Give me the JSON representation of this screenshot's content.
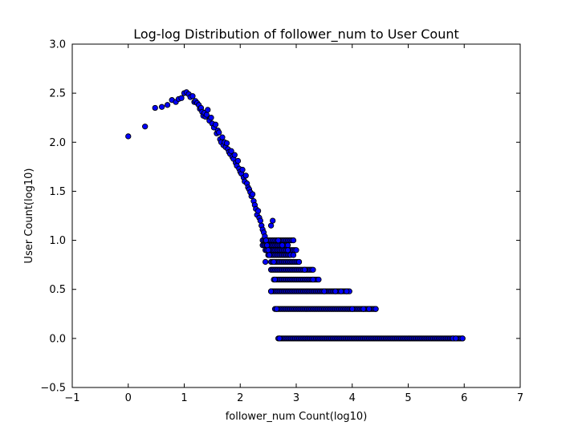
{
  "chart_data": {
    "type": "scatter",
    "title": "Log-log Distribution of follower_num to User Count",
    "xlabel": "follower_num Count(log10)",
    "ylabel": "User Count(log10)",
    "xlim": [
      -1,
      7
    ],
    "ylim": [
      -0.5,
      3.0
    ],
    "xticks": [
      -1,
      0,
      1,
      2,
      3,
      4,
      5,
      6,
      7
    ],
    "yticks": [
      -0.5,
      0.0,
      0.5,
      1.0,
      1.5,
      2.0,
      2.5,
      3.0
    ],
    "xtick_labels": [
      "−1",
      "0",
      "1",
      "2",
      "3",
      "4",
      "5",
      "6",
      "7"
    ],
    "ytick_labels": [
      "−0.5",
      "0.0",
      "0.5",
      "1.0",
      "1.5",
      "2.0",
      "2.5",
      "3.0"
    ],
    "grid": false,
    "legend": "none",
    "marker_color": "#0000ff",
    "marker_edge": "#000000",
    "points": [
      {
        "x": 0.0,
        "y": 2.06
      },
      {
        "x": 0.3,
        "y": 2.16
      },
      {
        "x": 0.48,
        "y": 2.35
      },
      {
        "x": 0.6,
        "y": 2.36
      },
      {
        "x": 0.7,
        "y": 2.38
      },
      {
        "x": 0.78,
        "y": 2.43
      },
      {
        "x": 0.85,
        "y": 2.41
      },
      {
        "x": 0.9,
        "y": 2.44
      },
      {
        "x": 0.95,
        "y": 2.45
      },
      {
        "x": 1.0,
        "y": 2.5
      },
      {
        "x": 1.04,
        "y": 2.51
      },
      {
        "x": 1.08,
        "y": 2.49
      },
      {
        "x": 1.11,
        "y": 2.46
      },
      {
        "x": 1.15,
        "y": 2.47
      },
      {
        "x": 1.18,
        "y": 2.41
      },
      {
        "x": 1.2,
        "y": 2.42
      },
      {
        "x": 1.23,
        "y": 2.4
      },
      {
        "x": 1.26,
        "y": 2.38
      },
      {
        "x": 1.28,
        "y": 2.34
      },
      {
        "x": 1.3,
        "y": 2.35
      },
      {
        "x": 1.32,
        "y": 2.31
      },
      {
        "x": 1.34,
        "y": 2.27
      },
      {
        "x": 1.36,
        "y": 2.3
      },
      {
        "x": 1.38,
        "y": 2.26
      },
      {
        "x": 1.4,
        "y": 2.28
      },
      {
        "x": 1.42,
        "y": 2.33
      },
      {
        "x": 1.45,
        "y": 2.22
      },
      {
        "x": 1.48,
        "y": 2.25
      },
      {
        "x": 1.5,
        "y": 2.19
      },
      {
        "x": 1.53,
        "y": 2.15
      },
      {
        "x": 1.56,
        "y": 2.18
      },
      {
        "x": 1.58,
        "y": 2.09
      },
      {
        "x": 1.6,
        "y": 2.12
      },
      {
        "x": 1.62,
        "y": 2.1
      },
      {
        "x": 1.64,
        "y": 2.03
      },
      {
        "x": 1.66,
        "y": 2.0
      },
      {
        "x": 1.68,
        "y": 2.05
      },
      {
        "x": 1.7,
        "y": 1.97
      },
      {
        "x": 1.72,
        "y": 2.0
      },
      {
        "x": 1.74,
        "y": 1.95
      },
      {
        "x": 1.76,
        "y": 1.99
      },
      {
        "x": 1.78,
        "y": 1.93
      },
      {
        "x": 1.8,
        "y": 1.9
      },
      {
        "x": 1.82,
        "y": 1.88
      },
      {
        "x": 1.84,
        "y": 1.91
      },
      {
        "x": 1.86,
        "y": 1.85
      },
      {
        "x": 1.88,
        "y": 1.83
      },
      {
        "x": 1.9,
        "y": 1.87
      },
      {
        "x": 1.92,
        "y": 1.79
      },
      {
        "x": 1.94,
        "y": 1.76
      },
      {
        "x": 1.96,
        "y": 1.81
      },
      {
        "x": 1.98,
        "y": 1.73
      },
      {
        "x": 2.0,
        "y": 1.7
      },
      {
        "x": 2.02,
        "y": 1.68
      },
      {
        "x": 2.04,
        "y": 1.72
      },
      {
        "x": 2.06,
        "y": 1.64
      },
      {
        "x": 2.08,
        "y": 1.6
      },
      {
        "x": 2.1,
        "y": 1.66
      },
      {
        "x": 2.12,
        "y": 1.58
      },
      {
        "x": 2.14,
        "y": 1.54
      },
      {
        "x": 2.16,
        "y": 1.52
      },
      {
        "x": 2.18,
        "y": 1.49
      },
      {
        "x": 2.2,
        "y": 1.45
      },
      {
        "x": 2.22,
        "y": 1.47
      },
      {
        "x": 2.24,
        "y": 1.4
      },
      {
        "x": 2.26,
        "y": 1.36
      },
      {
        "x": 2.28,
        "y": 1.32
      },
      {
        "x": 2.3,
        "y": 1.26
      },
      {
        "x": 2.32,
        "y": 1.3
      },
      {
        "x": 2.34,
        "y": 1.23
      },
      {
        "x": 2.36,
        "y": 1.2
      },
      {
        "x": 2.38,
        "y": 1.15
      },
      {
        "x": 2.4,
        "y": 1.11
      },
      {
        "x": 2.42,
        "y": 1.08
      },
      {
        "x": 2.44,
        "y": 1.04
      },
      {
        "x": 2.46,
        "y": 1.0
      },
      {
        "x": 2.48,
        "y": 0.95
      },
      {
        "x": 2.5,
        "y": 0.9
      },
      {
        "x": 2.52,
        "y": 0.85
      },
      {
        "x": 2.55,
        "y": 1.15
      },
      {
        "x": 2.58,
        "y": 1.2
      },
      {
        "x": 2.45,
        "y": 0.78
      },
      {
        "x": 2.6,
        "y": 0.78
      },
      {
        "x": 2.62,
        "y": 0.6
      },
      {
        "x": 2.55,
        "y": 0.48
      },
      {
        "x": 2.65,
        "y": 0.3
      },
      {
        "x": 2.7,
        "y": 0.0
      },
      {
        "x": 2.68,
        "y": 1.0
      },
      {
        "x": 2.75,
        "y": 0.95
      },
      {
        "x": 2.85,
        "y": 0.9
      },
      {
        "x": 2.95,
        "y": 0.85
      },
      {
        "x": 3.05,
        "y": 0.78
      },
      {
        "x": 3.15,
        "y": 0.7
      },
      {
        "x": 3.3,
        "y": 0.6
      },
      {
        "x": 3.5,
        "y": 0.48
      },
      {
        "x": 3.7,
        "y": 0.48
      },
      {
        "x": 3.8,
        "y": 0.48
      },
      {
        "x": 3.9,
        "y": 0.48
      },
      {
        "x": 4.0,
        "y": 0.3
      },
      {
        "x": 4.2,
        "y": 0.3
      },
      {
        "x": 4.3,
        "y": 0.3
      },
      {
        "x": 4.42,
        "y": 0.3
      },
      {
        "x": 5.8,
        "y": 0.0
      },
      {
        "x": 5.85,
        "y": 0.0
      },
      {
        "x": 5.97,
        "y": 0.0
      }
    ],
    "horizontal_bands": [
      {
        "y": 1.0,
        "x_start": 2.4,
        "x_end": 2.95
      },
      {
        "y": 0.95,
        "x_start": 2.4,
        "x_end": 2.85
      },
      {
        "y": 0.9,
        "x_start": 2.45,
        "x_end": 3.0
      },
      {
        "y": 0.85,
        "x_start": 2.5,
        "x_end": 2.9
      },
      {
        "y": 0.78,
        "x_start": 2.55,
        "x_end": 3.05
      },
      {
        "y": 0.7,
        "x_start": 2.55,
        "x_end": 3.3
      },
      {
        "y": 0.6,
        "x_start": 2.6,
        "x_end": 3.4
      },
      {
        "y": 0.48,
        "x_start": 2.55,
        "x_end": 3.95
      },
      {
        "y": 0.3,
        "x_start": 2.62,
        "x_end": 4.42
      },
      {
        "y": 0.0,
        "x_start": 2.68,
        "x_end": 5.97
      }
    ]
  }
}
